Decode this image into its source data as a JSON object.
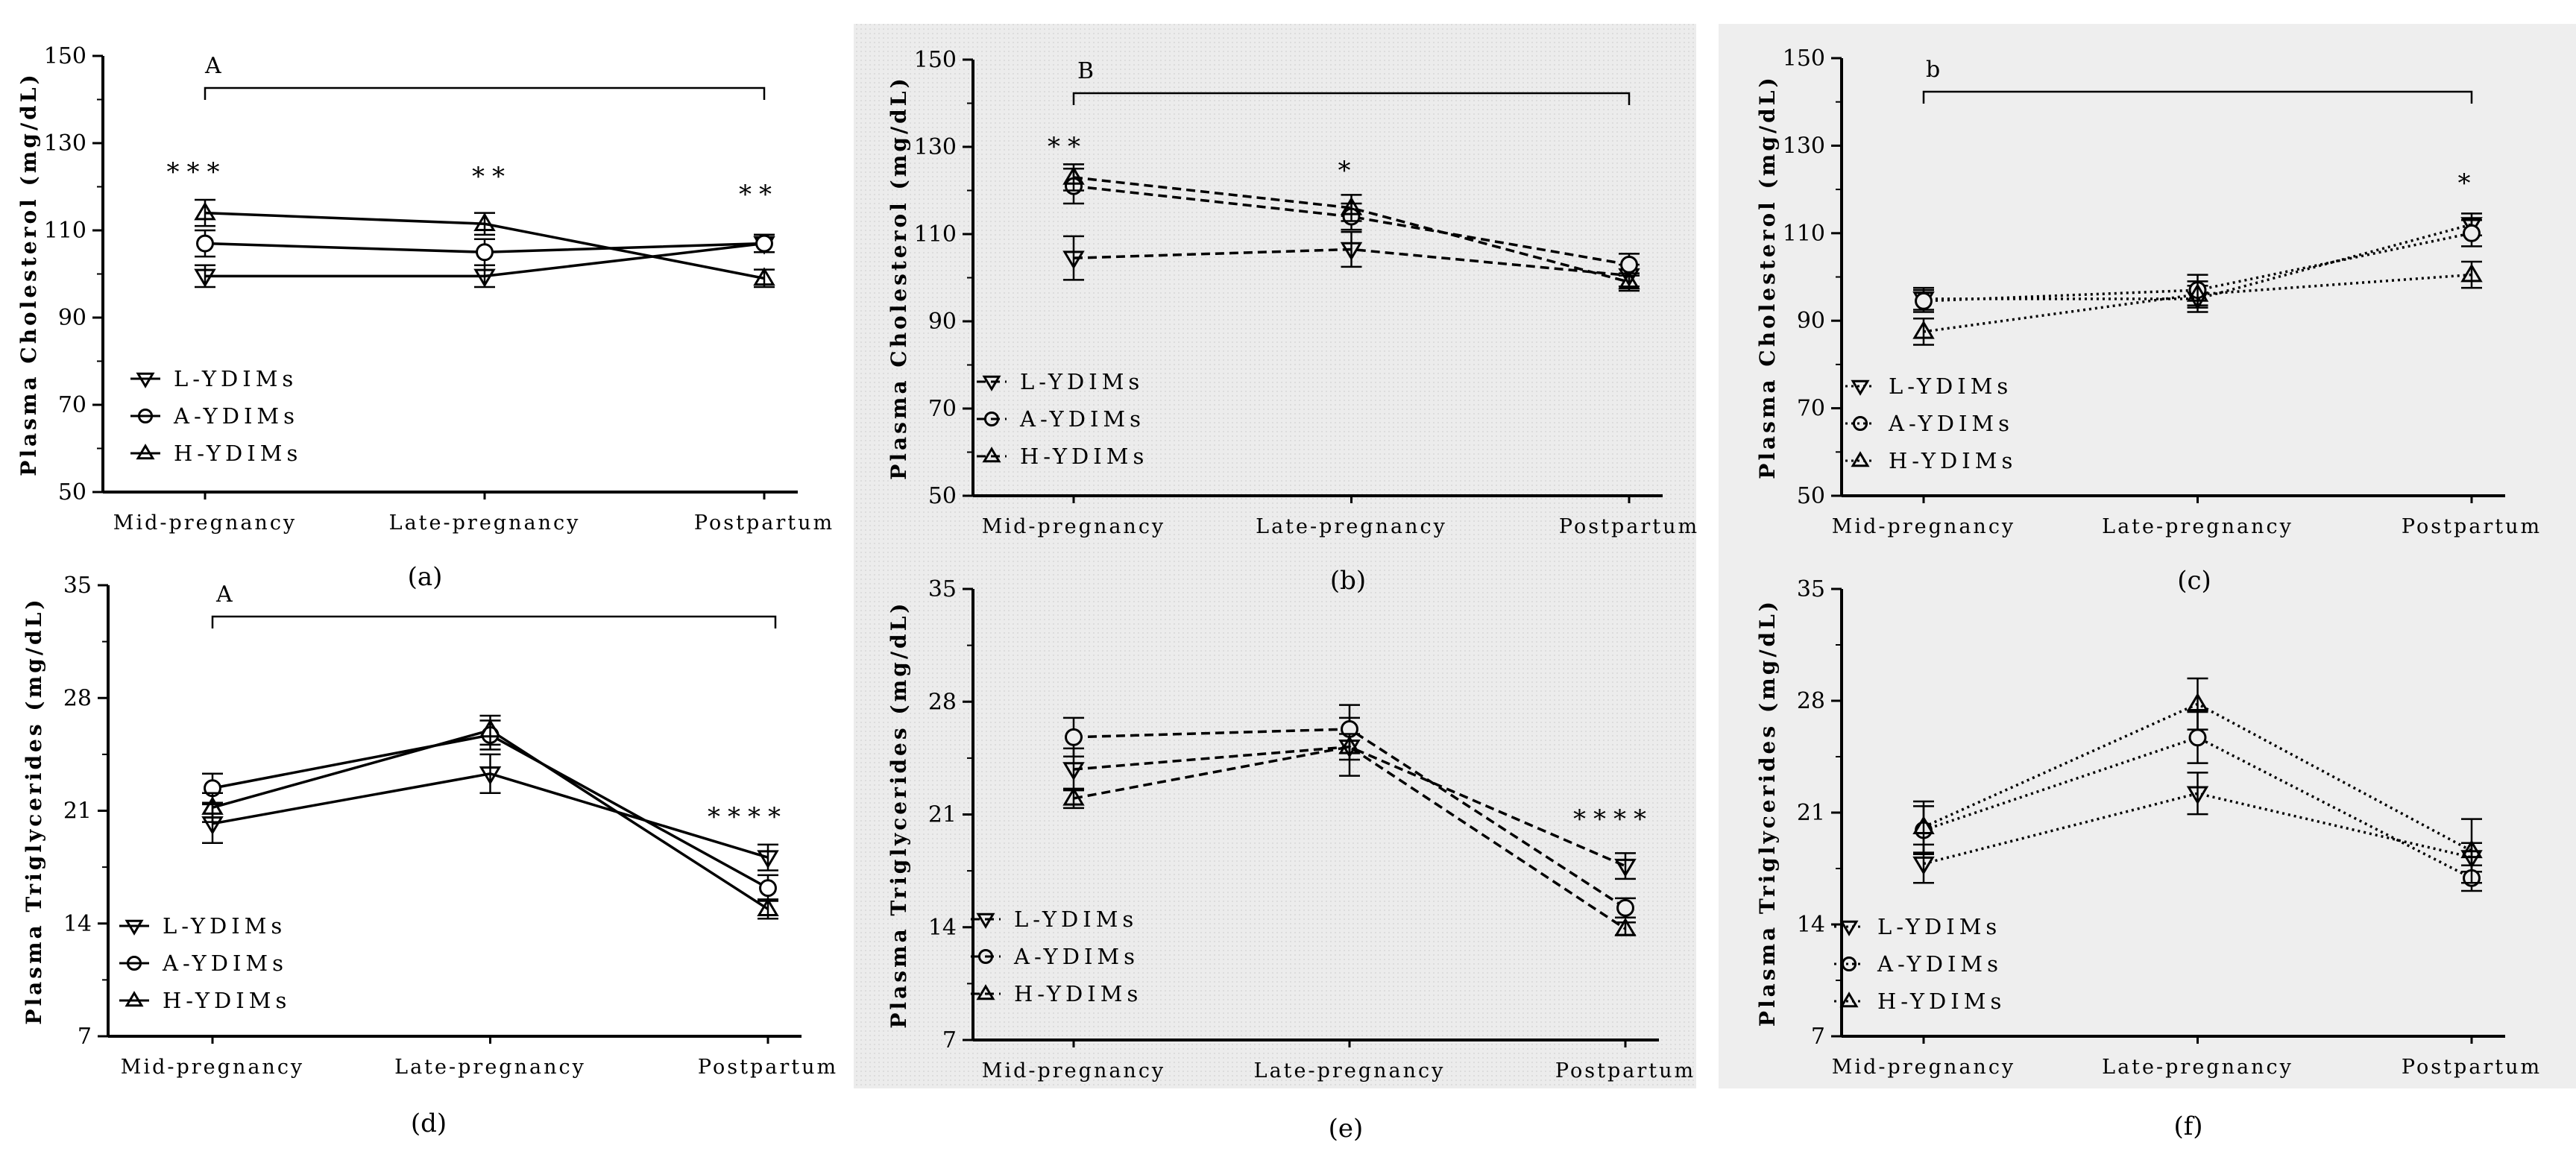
{
  "figure": {
    "categories": [
      "Mid-pregnancy",
      "Late-pregnancy",
      "Postpartum"
    ]
  },
  "chart_data": [
    {
      "panel": "a",
      "type": "line",
      "line_style": "solid",
      "background": "#ffffff",
      "ylabel": "Plasma Cholesterol (mg/dL)",
      "ylim": [
        50,
        150
      ],
      "yticks": [
        50,
        70,
        90,
        110,
        130,
        150
      ],
      "categories": [
        "Mid-pregnancy",
        "Late-pregnancy",
        "Postpartum"
      ],
      "legend_position": "bottom-left",
      "series": [
        {
          "name": "L-YDIMs",
          "marker": "triangle-down",
          "values": [
            99.5,
            99.5,
            107
          ],
          "errors": [
            2.5,
            2.5,
            2
          ]
        },
        {
          "name": "A-YDIMs",
          "marker": "circle",
          "values": [
            107,
            105,
            107
          ],
          "errors": [
            3,
            3,
            2
          ]
        },
        {
          "name": "H-YDIMs",
          "marker": "triangle-up",
          "values": [
            114,
            111.5,
            99
          ],
          "errors": [
            3,
            2.5,
            2
          ]
        }
      ],
      "significance": [
        "***",
        "**",
        "**"
      ],
      "bracket_label": "A",
      "panel_label": "(a)"
    },
    {
      "panel": "b",
      "type": "line",
      "line_style": "dashed",
      "background": "#eeeeee",
      "ylabel": "Plasma Cholesterol (mg/dL)",
      "ylim": [
        50,
        150
      ],
      "yticks": [
        50,
        70,
        90,
        110,
        130,
        150
      ],
      "categories": [
        "Mid-pregnancy",
        "Late-pregnancy",
        "Postpartum"
      ],
      "legend_position": "bottom-left",
      "series": [
        {
          "name": "L-YDIMs",
          "marker": "triangle-down",
          "values": [
            104.5,
            106.5,
            100.5
          ],
          "errors": [
            5,
            4,
            2.5
          ]
        },
        {
          "name": "A-YDIMs",
          "marker": "circle",
          "values": [
            121,
            114,
            103
          ],
          "errors": [
            4,
            3,
            2.5
          ]
        },
        {
          "name": "H-YDIMs",
          "marker": "triangle-up",
          "values": [
            123,
            116,
            99
          ],
          "errors": [
            3,
            3,
            2
          ]
        }
      ],
      "significance": [
        "**",
        "*",
        ""
      ],
      "bracket_label": "B",
      "panel_label": "(b)"
    },
    {
      "panel": "c",
      "type": "line",
      "line_style": "dotted",
      "background": "#eeeeee",
      "ylabel": "Plasma Cholesterol (mg/dL)",
      "ylim": [
        50,
        150
      ],
      "yticks": [
        50,
        70,
        90,
        110,
        130,
        150
      ],
      "categories": [
        "Mid-pregnancy",
        "Late-pregnancy",
        "Postpartum"
      ],
      "legend_position": "bottom-left",
      "series": [
        {
          "name": "L-YDIMs",
          "marker": "triangle-down",
          "values": [
            95,
            95,
            112
          ],
          "errors": [
            2.5,
            3,
            2.5
          ]
        },
        {
          "name": "A-YDIMs",
          "marker": "circle",
          "values": [
            94.5,
            97,
            110
          ],
          "errors": [
            2.5,
            3.5,
            3
          ]
        },
        {
          "name": "H-YDIMs",
          "marker": "triangle-up",
          "values": [
            87.5,
            96,
            100.5
          ],
          "errors": [
            3,
            3,
            3
          ]
        }
      ],
      "significance": [
        "",
        "",
        "*"
      ],
      "bracket_label": "b",
      "panel_label": "(c)"
    },
    {
      "panel": "d",
      "type": "line",
      "line_style": "solid",
      "background": "#ffffff",
      "ylabel": "Plasma Triglycerides (mg/dL)",
      "ylim": [
        7,
        35
      ],
      "yticks": [
        7,
        14,
        21,
        28,
        35
      ],
      "categories": [
        "Mid-pregnancy",
        "Late-pregnancy",
        "Postpartum"
      ],
      "legend_position": "bottom-left",
      "series": [
        {
          "name": "L-YDIMs",
          "marker": "triangle-down",
          "values": [
            20.2,
            23.3,
            18.1
          ],
          "errors": [
            1.2,
            1.2,
            0.8
          ]
        },
        {
          "name": "A-YDIMs",
          "marker": "circle",
          "values": [
            22.4,
            25.7,
            16.2
          ],
          "errors": [
            0.9,
            0.9,
            0.8
          ]
        },
        {
          "name": "H-YDIMs",
          "marker": "triangle-up",
          "values": [
            21.2,
            26,
            14.9
          ],
          "errors": [
            0.9,
            0.9,
            0.6
          ]
        }
      ],
      "significance": [
        "",
        "",
        "****"
      ],
      "bracket_label": "A",
      "panel_label": "(d)"
    },
    {
      "panel": "e",
      "type": "line",
      "line_style": "dashed",
      "background": "#eeeeee",
      "ylabel": "Plasma Triglycerides (mg/dL)",
      "ylim": [
        7,
        35
      ],
      "yticks": [
        7,
        14,
        21,
        28,
        35
      ],
      "categories": [
        "Mid-pregnancy",
        "Late-pregnancy",
        "Postpartum"
      ],
      "legend_position": "bottom-left",
      "series": [
        {
          "name": "L-YDIMs",
          "marker": "triangle-down",
          "values": [
            23.8,
            25.2,
            17.8
          ],
          "errors": [
            1.3,
            1.8,
            0.8
          ]
        },
        {
          "name": "A-YDIMs",
          "marker": "circle",
          "values": [
            25.8,
            26.3,
            15.2
          ],
          "errors": [
            1.2,
            1.5,
            0.6
          ]
        },
        {
          "name": "H-YDIMs",
          "marker": "triangle-up",
          "values": [
            22,
            25.2,
            13.9
          ],
          "errors": [
            0.6,
            0.8,
            0.4
          ]
        }
      ],
      "significance": [
        "",
        "",
        "****"
      ],
      "panel_label": "(e)"
    },
    {
      "panel": "f",
      "type": "line",
      "line_style": "dotted",
      "background": "#eeeeee",
      "ylabel": "Plasma Triglycerides (mg/dL)",
      "ylim": [
        7,
        35
      ],
      "yticks": [
        7,
        14,
        21,
        28,
        35
      ],
      "categories": [
        "Mid-pregnancy",
        "Late-pregnancy",
        "Postpartum"
      ],
      "legend_position": "bottom-left",
      "series": [
        {
          "name": "L-YDIMs",
          "marker": "triangle-down",
          "values": [
            17.8,
            22.2,
            18.2
          ],
          "errors": [
            1.2,
            1.3,
            0.9
          ]
        },
        {
          "name": "A-YDIMs",
          "marker": "circle",
          "values": [
            19.9,
            25.7,
            16.9
          ],
          "errors": [
            1.5,
            1.6,
            0.8
          ]
        },
        {
          "name": "H-YDIMs",
          "marker": "triangle-up",
          "values": [
            20.1,
            27.8,
            18.6
          ],
          "errors": [
            1.6,
            1.6,
            2
          ]
        }
      ],
      "significance": [
        "",
        "",
        ""
      ],
      "panel_label": "(f)"
    }
  ]
}
